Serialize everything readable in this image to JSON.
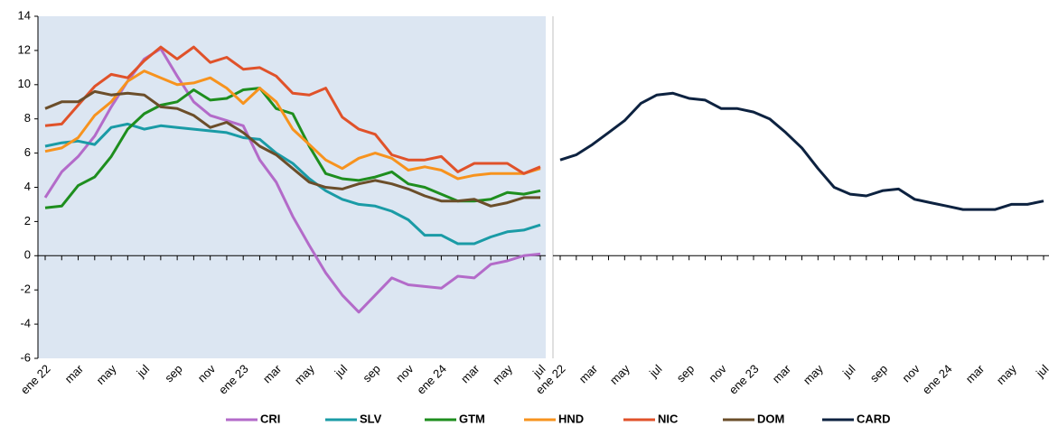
{
  "chart_data": [
    {
      "type": "line",
      "categories": [
        "ene 22",
        null,
        "mar",
        null,
        "may",
        null,
        "jul",
        null,
        "sep",
        null,
        "nov",
        null,
        "ene 23",
        null,
        "mar",
        null,
        "may",
        null,
        "jul",
        null,
        "sep",
        null,
        "nov",
        null,
        "ene 24",
        null,
        "mar",
        null,
        "may",
        null,
        "jul"
      ],
      "ylim": [
        -6,
        14
      ],
      "yticks": [
        -6,
        -4,
        -2,
        0,
        2,
        4,
        6,
        8,
        10,
        12,
        14
      ],
      "background": "#dce6f2",
      "series": [
        {
          "name": "CRI",
          "color": "#b36bc9",
          "values": [
            3.4,
            4.9,
            5.8,
            7.0,
            8.7,
            10.2,
            11.5,
            12.1,
            10.5,
            9.0,
            8.2,
            7.9,
            7.6,
            5.6,
            4.3,
            2.3,
            0.6,
            -1.0,
            -2.3,
            -3.3,
            -2.3,
            -1.3,
            -1.7,
            -1.8,
            -1.9,
            -1.2,
            -1.3,
            -0.5,
            -0.3,
            0.0,
            0.1
          ]
        },
        {
          "name": "SLV",
          "color": "#1a9ba6",
          "values": [
            6.4,
            6.6,
            6.7,
            6.5,
            7.5,
            7.7,
            7.4,
            7.6,
            7.5,
            7.4,
            7.3,
            7.2,
            6.9,
            6.8,
            6.0,
            5.4,
            4.5,
            3.8,
            3.3,
            3.0,
            2.9,
            2.6,
            2.1,
            1.2,
            1.2,
            0.7,
            0.7,
            1.1,
            1.4,
            1.5,
            1.8
          ]
        },
        {
          "name": "GTM",
          "color": "#1e8e1e",
          "values": [
            2.8,
            2.9,
            4.1,
            4.6,
            5.8,
            7.4,
            8.3,
            8.8,
            9.0,
            9.7,
            9.1,
            9.2,
            9.7,
            9.8,
            8.6,
            8.3,
            6.4,
            4.8,
            4.5,
            4.4,
            4.6,
            4.9,
            4.2,
            4.0,
            3.6,
            3.2,
            3.2,
            3.3,
            3.7,
            3.6,
            3.8
          ]
        },
        {
          "name": "HND",
          "color": "#f7931e",
          "values": [
            6.1,
            6.3,
            6.9,
            8.2,
            9.0,
            10.2,
            10.8,
            10.4,
            10.0,
            10.1,
            10.4,
            9.8,
            8.9,
            9.8,
            9.0,
            7.4,
            6.5,
            5.6,
            5.1,
            5.7,
            6.0,
            5.7,
            5.0,
            5.2,
            5.0,
            4.5,
            4.7,
            4.8,
            4.8,
            4.8,
            5.1
          ]
        },
        {
          "name": "NIC",
          "color": "#e0522a",
          "values": [
            7.6,
            7.7,
            8.8,
            9.9,
            10.6,
            10.4,
            11.4,
            12.2,
            11.5,
            12.2,
            11.3,
            11.6,
            10.9,
            11.0,
            10.5,
            9.5,
            9.4,
            9.8,
            8.1,
            7.4,
            7.1,
            5.9,
            5.6,
            5.6,
            5.8,
            4.9,
            5.4,
            5.4,
            5.4,
            4.8,
            5.2
          ]
        },
        {
          "name": "DOM",
          "color": "#6b4e2a",
          "values": [
            8.6,
            9.0,
            9.0,
            9.6,
            9.4,
            9.5,
            9.4,
            8.7,
            8.6,
            8.2,
            7.5,
            7.8,
            7.2,
            6.4,
            5.9,
            5.1,
            4.3,
            4.0,
            3.9,
            4.2,
            4.4,
            4.2,
            3.9,
            3.5,
            3.2,
            3.2,
            3.3,
            2.9,
            3.1,
            3.4,
            3.4
          ]
        }
      ]
    },
    {
      "type": "line",
      "categories": [
        "ene 22",
        null,
        "mar",
        null,
        "may",
        null,
        "jul",
        null,
        "sep",
        null,
        "nov",
        null,
        "ene 23",
        null,
        "mar",
        null,
        "may",
        null,
        "jul",
        null,
        "sep",
        null,
        "nov",
        null,
        "ene 24",
        null,
        "mar",
        null,
        "may",
        null,
        "jul"
      ],
      "ylim": [
        -6,
        14
      ],
      "background": "#ffffff",
      "series": [
        {
          "name": "CARD",
          "color": "#0d2240",
          "values": [
            5.6,
            5.9,
            6.5,
            7.2,
            7.9,
            8.9,
            9.4,
            9.5,
            9.2,
            9.1,
            8.6,
            8.6,
            8.4,
            8.0,
            7.2,
            6.3,
            5.1,
            4.0,
            3.6,
            3.5,
            3.8,
            3.9,
            3.3,
            3.1,
            2.9,
            2.7,
            2.7,
            2.7,
            3.0,
            3.0,
            3.2
          ]
        }
      ]
    }
  ]
}
